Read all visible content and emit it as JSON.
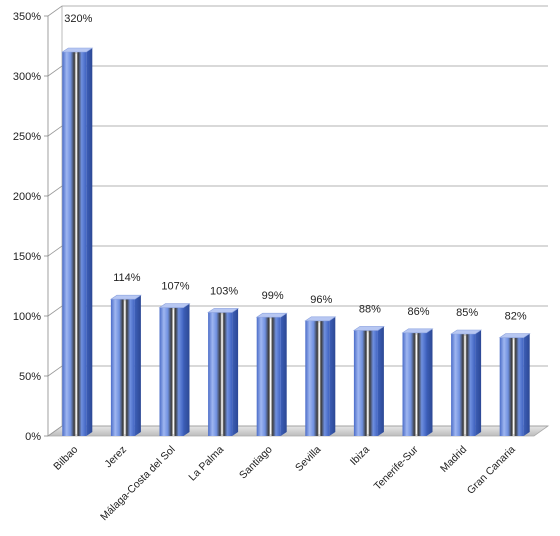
{
  "chart_data": {
    "type": "bar",
    "style": "3d-cylinder-bars",
    "categories": [
      "Bilbao",
      "Jerez",
      "Málaga-Costa del Sol",
      "La Palma",
      "Santiago",
      "Sevilla",
      "Ibiza",
      "Tenerife-Sur",
      "Madrid",
      "Gran Canaria"
    ],
    "values": [
      320,
      114,
      107,
      103,
      99,
      96,
      88,
      86,
      85,
      82
    ],
    "data_labels": [
      "320%",
      "114%",
      "107%",
      "103%",
      "99%",
      "96%",
      "88%",
      "86%",
      "85%",
      "82%"
    ],
    "y_ticks": [
      "0%",
      "50%",
      "100%",
      "150%",
      "200%",
      "250%",
      "300%",
      "350%"
    ],
    "ylim": [
      0,
      350
    ],
    "grid": true,
    "title": "",
    "xlabel": "",
    "ylabel": "",
    "colors": {
      "bar_face": "#5b7fd8",
      "bar_face_light": "#9fb6f0",
      "bar_side": "#3d5fb8",
      "bar_top": "#b7c7f2",
      "grid": "#9a9a9a",
      "floor": "#c9c9c9"
    }
  }
}
